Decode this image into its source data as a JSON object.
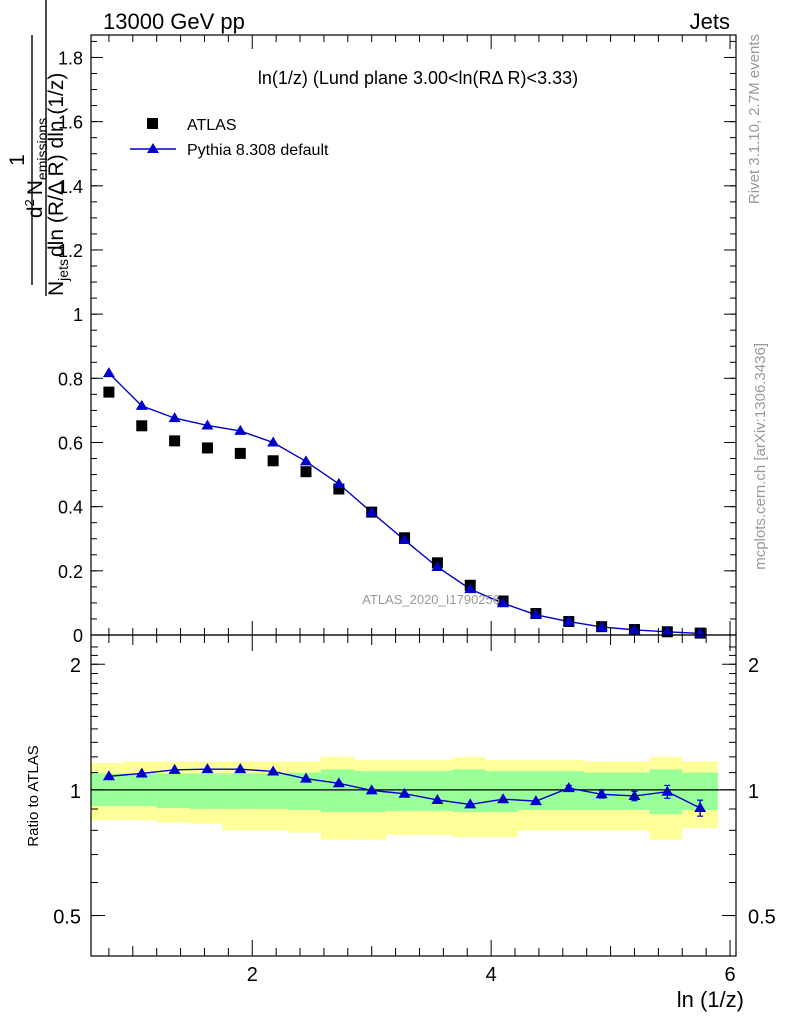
{
  "header": {
    "left": "13000 GeV pp",
    "right": "Jets"
  },
  "side_labels": {
    "rivet": "Rivet 3.1.10,  2.7M events",
    "mcplots": "mcplots.cern.ch [arXiv:1306.3436]"
  },
  "colors": {
    "mc": "#0000cc",
    "data": "#000000",
    "band_outer": "#ffff99",
    "band_inner": "#99ff99"
  },
  "chart_data": [
    {
      "type": "scatter",
      "title": "ln(1/z) (Lund plane 3.00<ln(RΔ R)<3.33)",
      "ylabel": "1/N_jets d²N_emissions / dln(R/Δ R) dln(1/z)",
      "ylabel_parts": {
        "frac_num": "1",
        "frac_den_N": "N",
        "frac_den_sub": "jets",
        "num_d": "d",
        "num_sup": "2",
        "num_N": "N",
        "num_sub": "emissions",
        "den_text": "dln (R/Δ R) dln (1/z)"
      },
      "watermark": "ATLAS_2020_I1790256",
      "xlim": [
        0.65,
        6.05
      ],
      "ylim": [
        0,
        1.87
      ],
      "yticks": [
        0,
        0.2,
        0.4,
        0.6,
        0.8,
        1,
        1.2,
        1.4,
        1.6,
        1.8
      ],
      "ytick_labels": [
        "0",
        "0.2",
        "0.4",
        "0.6",
        "0.8",
        "1",
        "1.2",
        "1.4",
        "1.6",
        "1.8"
      ],
      "legend_position": "top-left",
      "x": [
        0.8,
        1.075,
        1.35,
        1.625,
        1.9,
        2.175,
        2.45,
        2.725,
        3.0,
        3.275,
        3.55,
        3.825,
        4.1,
        4.375,
        4.65,
        4.925,
        5.2,
        5.475,
        5.75
      ],
      "series": [
        {
          "name": "ATLAS",
          "marker": "square",
          "values": [
            0.757,
            0.652,
            0.605,
            0.583,
            0.566,
            0.543,
            0.509,
            0.455,
            0.383,
            0.303,
            0.225,
            0.155,
            0.106,
            0.067,
            0.042,
            0.026,
            0.017,
            0.01,
            0.006
          ]
        },
        {
          "name": "Pythia 8.308 default",
          "marker": "triangle",
          "values": [
            0.816,
            0.714,
            0.676,
            0.653,
            0.636,
            0.6,
            0.541,
            0.471,
            0.382,
            0.296,
            0.212,
            0.143,
            0.099,
            0.063,
            0.042,
            0.025,
            0.016,
            0.01,
            0.005
          ]
        }
      ]
    },
    {
      "type": "line",
      "ylabel": "Ratio to ATLAS",
      "xlabel": "ln (1/z)",
      "xlim": [
        0.65,
        6.05
      ],
      "ylim": [
        0.4,
        2.35
      ],
      "log_y": true,
      "yticks_labeled": [
        0.5,
        1,
        2
      ],
      "ytick_labels": [
        "0.5",
        "1",
        "2"
      ],
      "xticks": [
        2,
        4,
        6
      ],
      "xtick_labels": [
        "2",
        "4",
        "6"
      ],
      "bin_edges": [
        0.65,
        0.925,
        1.2,
        1.475,
        1.75,
        2.025,
        2.3,
        2.575,
        2.85,
        3.125,
        3.4,
        3.675,
        3.95,
        4.225,
        4.5,
        4.775,
        5.05,
        5.325,
        5.6,
        5.9
      ],
      "band_outer": {
        "name": "ATLAS total uncertainty",
        "lo": [
          0.845,
          0.845,
          0.835,
          0.83,
          0.8,
          0.8,
          0.79,
          0.76,
          0.76,
          0.78,
          0.78,
          0.77,
          0.77,
          0.8,
          0.8,
          0.8,
          0.8,
          0.76,
          0.81
        ],
        "hi": [
          1.16,
          1.17,
          1.17,
          1.17,
          1.17,
          1.17,
          1.17,
          1.2,
          1.18,
          1.18,
          1.18,
          1.2,
          1.18,
          1.18,
          1.18,
          1.17,
          1.17,
          1.2,
          1.17
        ]
      },
      "band_inner": {
        "name": "ATLAS statistical uncertainty",
        "lo": [
          0.915,
          0.915,
          0.905,
          0.9,
          0.9,
          0.9,
          0.895,
          0.885,
          0.885,
          0.89,
          0.89,
          0.885,
          0.885,
          0.895,
          0.895,
          0.895,
          0.895,
          0.875,
          0.895
        ],
        "hi": [
          1.095,
          1.095,
          1.095,
          1.095,
          1.095,
          1.095,
          1.1,
          1.12,
          1.11,
          1.11,
          1.11,
          1.12,
          1.11,
          1.11,
          1.11,
          1.1,
          1.1,
          1.12,
          1.1
        ]
      },
      "series": [
        {
          "name": "Pythia 8.308 default",
          "values": [
            1.078,
            1.095,
            1.117,
            1.121,
            1.121,
            1.107,
            1.064,
            1.037,
            0.997,
            0.979,
            0.946,
            0.923,
            0.95,
            0.94,
            1.01,
            0.976,
            0.967,
            0.99,
            0.905
          ],
          "errors": [
            0,
            0,
            0,
            0,
            0,
            0,
            0,
            0,
            0,
            0,
            0,
            0,
            0,
            0,
            0.015,
            0.02,
            0.025,
            0.035,
            0.04
          ]
        }
      ]
    }
  ]
}
